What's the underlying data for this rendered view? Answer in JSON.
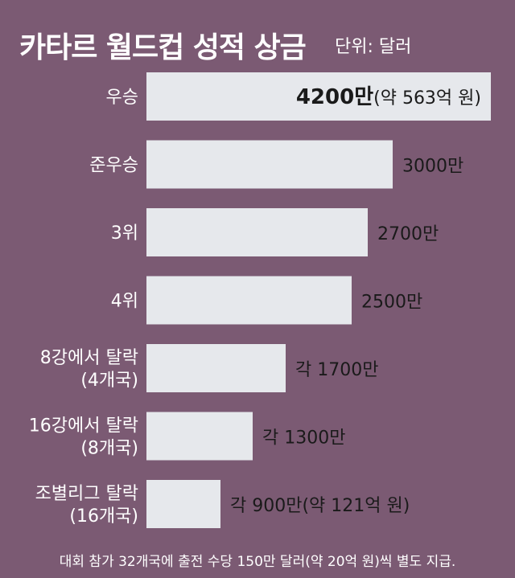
{
  "chart_data": {
    "type": "bar",
    "orientation": "horizontal",
    "title": "카타르 월드컵 성적 상금",
    "unit_label": "단위: 달러",
    "categories": [
      [
        "우승"
      ],
      [
        "준우승"
      ],
      [
        "3위"
      ],
      [
        "4위"
      ],
      [
        "8강에서 탈락",
        "(4개국)"
      ],
      [
        "16강에서 탈락",
        "(8개국)"
      ],
      [
        "조별리그 탈락",
        "(16개국)"
      ]
    ],
    "values": [
      4200,
      3000,
      2700,
      2500,
      1700,
      1300,
      900
    ],
    "value_unit": "만 달러",
    "value_labels": [
      {
        "main": "4200만",
        "sub": "(약 563억 원)"
      },
      {
        "main": "3000만",
        "sub": ""
      },
      {
        "main": "2700만",
        "sub": ""
      },
      {
        "main": "2500만",
        "sub": ""
      },
      {
        "main": "각 1700만",
        "sub": ""
      },
      {
        "main": "각 1300만",
        "sub": ""
      },
      {
        "main": "각 900만",
        "sub": "(약 121억 원)"
      }
    ],
    "xlim": [
      0,
      4200
    ],
    "grid": false
  },
  "footnote": "대회 참가 32개국에 출전 수당 150만 달러(약 20억 원)씩 별도 지급.",
  "colors": {
    "background": "#7b5a73",
    "bar": "#e6e8ec",
    "text_light": "#ffffff",
    "text_dark": "#1a1a1a"
  }
}
